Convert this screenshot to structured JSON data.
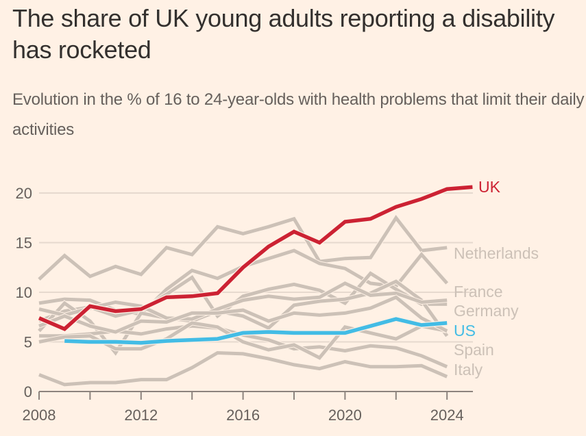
{
  "header": {
    "title": "The share of UK young adults reporting a disability has rocketed",
    "subtitle": "Evolution in the % of 16 to 24-year-olds with health problems that limit their daily activities"
  },
  "colors": {
    "background": "#fff1e5",
    "highlight_uk": "#cc2233",
    "highlight_us": "#43bce5",
    "context": "#ccc1b7",
    "grid": "#e6d9ce",
    "axis": "#8c837d",
    "text": "#66605c"
  },
  "chart_data": {
    "type": "line",
    "title": "The share of UK young adults reporting a disability has rocketed",
    "subtitle": "Evolution in the % of 16 to 24-year-olds with health problems that limit their daily activities",
    "xlabel": "",
    "ylabel": "",
    "xlim": [
      2008,
      2025
    ],
    "ylim": [
      0,
      21
    ],
    "x_ticks": [
      2008,
      2012,
      2016,
      2020,
      2024
    ],
    "x_tick_labels": [
      "2008",
      "2012",
      "2016",
      "2020",
      "2024"
    ],
    "y_ticks": [
      0,
      5,
      10,
      15,
      20
    ],
    "y_tick_labels": [
      "0",
      "5",
      "10",
      "15",
      "20"
    ],
    "grid": true,
    "legend": "direct-labels-right",
    "highlight_series": [
      {
        "name": "UK",
        "label": "UK",
        "color": "#cc2233",
        "x": [
          2008,
          2009,
          2010,
          2011,
          2012,
          2013,
          2014,
          2015,
          2016,
          2017,
          2018,
          2019,
          2020,
          2021,
          2022,
          2023,
          2024,
          2025
        ],
        "values": [
          7.4,
          6.3,
          8.6,
          8.1,
          8.3,
          9.5,
          9.6,
          9.9,
          12.5,
          14.6,
          16.1,
          15.0,
          17.1,
          17.4,
          18.6,
          19.4,
          20.4,
          20.6
        ]
      },
      {
        "name": "US",
        "label": "US",
        "color": "#43bce5",
        "x": [
          2009,
          2010,
          2011,
          2012,
          2013,
          2014,
          2015,
          2016,
          2017,
          2018,
          2019,
          2020,
          2021,
          2022,
          2023,
          2024
        ],
        "values": [
          5.1,
          5.0,
          5.0,
          4.9,
          5.1,
          5.2,
          5.3,
          5.9,
          6.0,
          5.9,
          5.9,
          5.9,
          6.6,
          7.3,
          6.7,
          6.9
        ]
      }
    ],
    "context_series": [
      {
        "name": "Netherlands",
        "label": "Netherlands",
        "x": [
          2008,
          2009,
          2010,
          2011,
          2012,
          2013,
          2014,
          2015,
          2016,
          2017,
          2018,
          2019,
          2020,
          2021,
          2022,
          2023,
          2024
        ],
        "values": [
          11.3,
          13.7,
          11.6,
          12.6,
          11.8,
          14.5,
          13.8,
          16.6,
          15.9,
          16.6,
          17.4,
          13.1,
          13.4,
          13.5,
          17.5,
          14.2,
          14.5
        ]
      },
      {
        "name": "France",
        "label": "France",
        "x": [
          2008,
          2009,
          2010,
          2011,
          2012,
          2013,
          2014,
          2015,
          2016,
          2017,
          2018,
          2019,
          2020,
          2021,
          2022,
          2023,
          2024
        ],
        "values": [
          8.9,
          9.3,
          9.2,
          8.2,
          7.8,
          10.3,
          12.2,
          11.4,
          12.6,
          13.4,
          14.2,
          12.9,
          12.4,
          10.9,
          10.6,
          13.8,
          10.9
        ]
      },
      {
        "name": "Germany",
        "label": "Germany",
        "x": [
          2008,
          2009,
          2010,
          2011,
          2012,
          2013,
          2014,
          2015,
          2016,
          2017,
          2018,
          2019,
          2020,
          2021,
          2022,
          2023,
          2024
        ],
        "values": [
          7.1,
          8.1,
          8.5,
          7.6,
          8.2,
          9.8,
          11.5,
          7.6,
          9.6,
          10.3,
          10.8,
          10.2,
          8.9,
          11.9,
          10.3,
          8.8,
          8.8
        ]
      },
      {
        "name": "Spain",
        "label": "Spain",
        "x": [
          2008,
          2009,
          2010,
          2011,
          2012,
          2013,
          2014,
          2015,
          2016,
          2017,
          2018,
          2019,
          2020,
          2021,
          2022,
          2023,
          2024
        ],
        "values": [
          6.1,
          8.9,
          7.1,
          3.9,
          7.9,
          7.4,
          7.1,
          8.1,
          7.6,
          6.4,
          8.7,
          9.1,
          9.3,
          9.9,
          11.1,
          9.2,
          5.6
        ]
      },
      {
        "name": "Other-1",
        "label": "",
        "x": [
          2008,
          2009,
          2010,
          2011,
          2012,
          2013,
          2014,
          2015,
          2016,
          2017,
          2018,
          2019,
          2020,
          2021,
          2022,
          2023,
          2024
        ],
        "values": [
          5.6,
          5.6,
          5.8,
          6.1,
          5.8,
          6.3,
          6.6,
          6.4,
          5.7,
          5.2,
          4.3,
          4.5,
          4.1,
          4.6,
          4.4,
          3.6,
          2.5
        ]
      },
      {
        "name": "Other-2",
        "label": "",
        "x": [
          2008,
          2009,
          2010,
          2011,
          2012,
          2013,
          2014,
          2015,
          2016,
          2017,
          2018,
          2019,
          2020,
          2021,
          2022,
          2023,
          2024
        ],
        "values": [
          5.0,
          5.5,
          5.6,
          4.3,
          4.3,
          5.3,
          6.9,
          6.5,
          5.0,
          4.2,
          4.7,
          3.4,
          6.5,
          5.9,
          5.3,
          6.6,
          6.1
        ]
      },
      {
        "name": "Italy",
        "label": "Italy",
        "x": [
          2008,
          2009,
          2010,
          2011,
          2012,
          2013,
          2014,
          2015,
          2016,
          2017,
          2018,
          2019,
          2020,
          2021,
          2022,
          2023,
          2024
        ],
        "values": [
          1.7,
          0.7,
          0.9,
          0.9,
          1.2,
          1.2,
          2.4,
          3.9,
          3.8,
          3.3,
          2.7,
          2.3,
          3.0,
          2.5,
          2.5,
          2.6,
          1.5
        ]
      },
      {
        "name": "Other-3",
        "label": "",
        "x": [
          2008,
          2009,
          2010,
          2011,
          2012,
          2013,
          2014,
          2015,
          2016,
          2017,
          2018,
          2019,
          2020,
          2021,
          2022,
          2023,
          2024
        ],
        "values": [
          8.3,
          7.7,
          8.4,
          9.0,
          8.6,
          7.4,
          7.3,
          8.3,
          9.2,
          9.6,
          9.3,
          9.5,
          10.9,
          9.7,
          9.9,
          9.0,
          9.2
        ]
      },
      {
        "name": "Other-4",
        "label": "",
        "x": [
          2008,
          2009,
          2010,
          2011,
          2012,
          2013,
          2014,
          2015,
          2016,
          2017,
          2018,
          2019,
          2020,
          2021,
          2022,
          2023,
          2024
        ],
        "values": [
          6.6,
          7.6,
          6.6,
          6.0,
          7.1,
          7.0,
          7.9,
          7.9,
          8.2,
          7.1,
          7.9,
          7.7,
          7.9,
          8.4,
          9.5,
          7.4,
          6.1
        ]
      }
    ]
  }
}
